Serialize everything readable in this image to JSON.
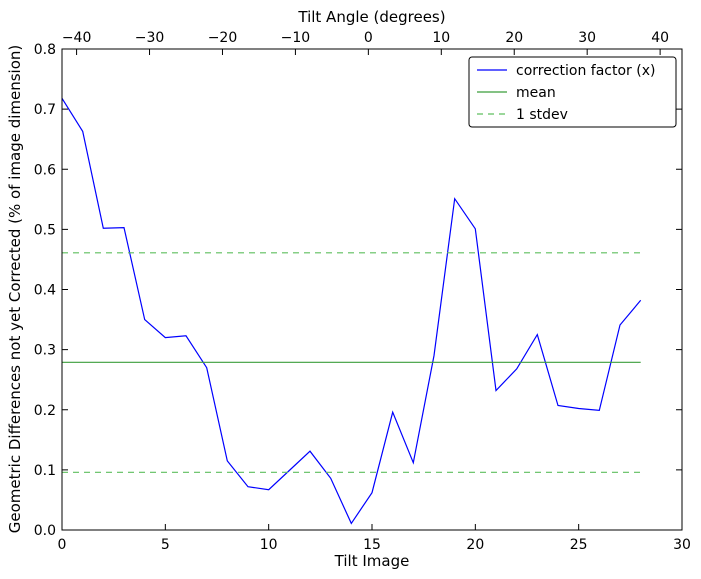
{
  "chart_data": {
    "type": "line",
    "xlabel": "Tilt Image",
    "ylabel": "Geometric Differences not yet Corrected (% of image dimension)",
    "top_xlabel": "Tilt Angle (degrees)",
    "xlim": [
      0,
      30
    ],
    "ylim": [
      0,
      0.8
    ],
    "top_xlim": [
      -42,
      43
    ],
    "x_ticks": [
      0,
      5,
      10,
      15,
      20,
      25,
      30
    ],
    "y_ticks": [
      0.0,
      0.1,
      0.2,
      0.3,
      0.4,
      0.5,
      0.6,
      0.7,
      0.8
    ],
    "top_x_ticks": [
      -40,
      -30,
      -20,
      -10,
      0,
      10,
      20,
      30,
      40
    ],
    "x_tick_labels": [
      "0",
      "5",
      "10",
      "15",
      "20",
      "25",
      "30"
    ],
    "y_tick_labels": [
      "0.0",
      "0.1",
      "0.2",
      "0.3",
      "0.4",
      "0.5",
      "0.6",
      "0.7",
      "0.8"
    ],
    "top_x_tick_labels": [
      "−40",
      "−30",
      "−20",
      "−10",
      "0",
      "10",
      "20",
      "30",
      "40"
    ],
    "grid": false,
    "legend_position": "top-right",
    "series": [
      {
        "name": "correction factor (x)",
        "color": "#0000ff",
        "style": "solid",
        "x": [
          0,
          1,
          2,
          3,
          4,
          5,
          6,
          7,
          8,
          9,
          10,
          11,
          12,
          13,
          14,
          15,
          16,
          17,
          18,
          19,
          20,
          21,
          22,
          23,
          24,
          25,
          26,
          27,
          28
        ],
        "y": [
          0.718,
          0.663,
          0.502,
          0.503,
          0.35,
          0.32,
          0.323,
          0.27,
          0.115,
          0.072,
          0.067,
          0.099,
          0.131,
          0.086,
          0.011,
          0.062,
          0.196,
          0.112,
          0.29,
          0.551,
          0.501,
          0.232,
          0.268,
          0.325,
          0.207,
          0.202,
          0.199,
          0.341,
          0.382
        ]
      },
      {
        "name": "mean",
        "color": "#3b9e3b",
        "style": "solid",
        "x": [
          0,
          28
        ],
        "y": [
          0.279,
          0.279
        ]
      },
      {
        "name": "1 stdev",
        "color": "#5fbf5f",
        "style": "dashed",
        "x": [
          0,
          28
        ],
        "y": [
          0.461,
          0.461
        ]
      },
      {
        "name": "",
        "color": "#5fbf5f",
        "style": "dashed",
        "x": [
          0,
          28
        ],
        "y": [
          0.096,
          0.096
        ]
      }
    ],
    "legend": [
      {
        "label": "correction factor (x)",
        "color": "#0000ff",
        "style": "solid"
      },
      {
        "label": "mean",
        "color": "#3b9e3b",
        "style": "solid"
      },
      {
        "label": "1 stdev",
        "color": "#5fbf5f",
        "style": "dashed"
      }
    ]
  }
}
